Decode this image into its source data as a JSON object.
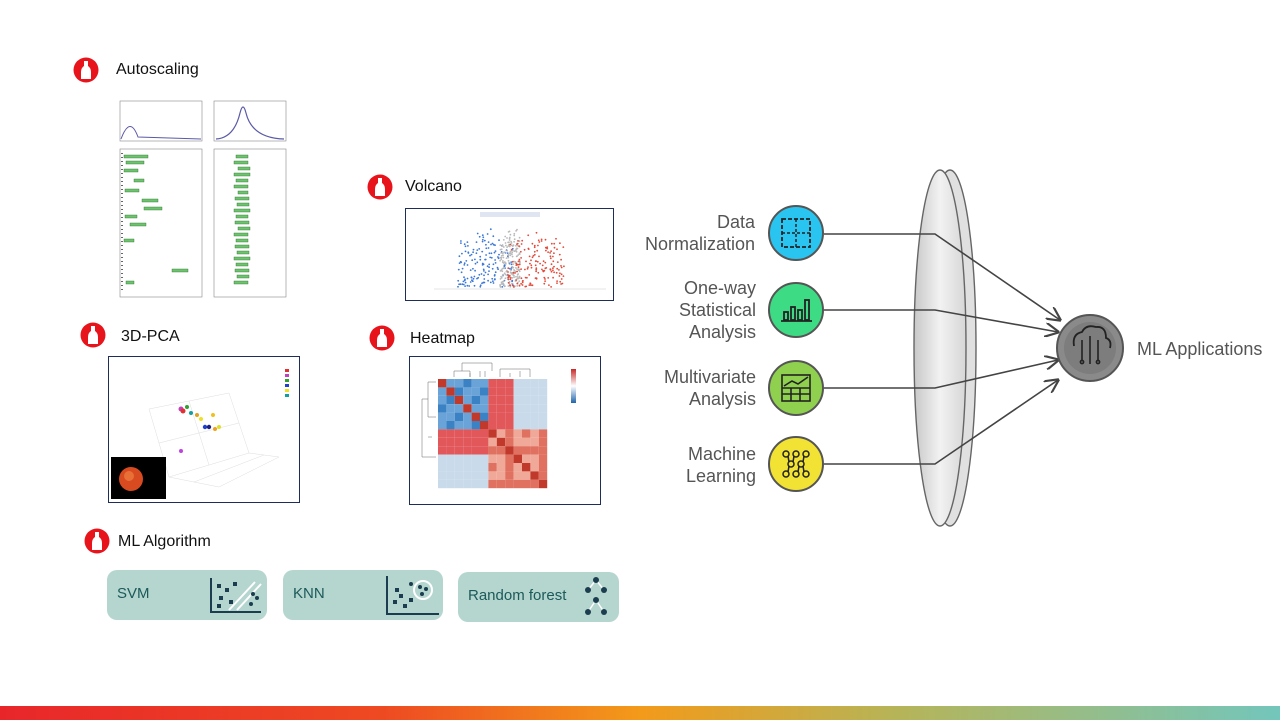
{
  "sections": {
    "autoscaling": "Autoscaling",
    "volcano": "Volcano",
    "pca": "3D-PCA",
    "heatmap": "Heatmap",
    "ml_algorithm": "ML Algorithm"
  },
  "algorithms": [
    {
      "label": "SVM",
      "icon": "svm-scatter-icon"
    },
    {
      "label": "KNN",
      "icon": "knn-cluster-icon"
    },
    {
      "label": "Random forest",
      "icon": "tree-icon"
    }
  ],
  "pipeline": {
    "steps": [
      {
        "line1": "Data",
        "line2": "Normalization",
        "color": "#29c4ef",
        "icon": "grid-icon"
      },
      {
        "line1": "One-way",
        "line2": "Statistical",
        "line3": "Analysis",
        "color": "#3ddc84",
        "icon": "bar-chart-icon"
      },
      {
        "line1": "Multivariate",
        "line2": "Analysis",
        "color": "#8fd14f",
        "icon": "table-chart-icon"
      },
      {
        "line1": "Machine",
        "line2": "Learning",
        "color": "#f2e234",
        "icon": "network-icon"
      }
    ],
    "output": "ML Applications"
  },
  "colors": {
    "bullet_red": "#e8141c",
    "algo_bg": "#b5d5cf",
    "algo_text": "#1c5a5a",
    "arrow": "#444444"
  }
}
